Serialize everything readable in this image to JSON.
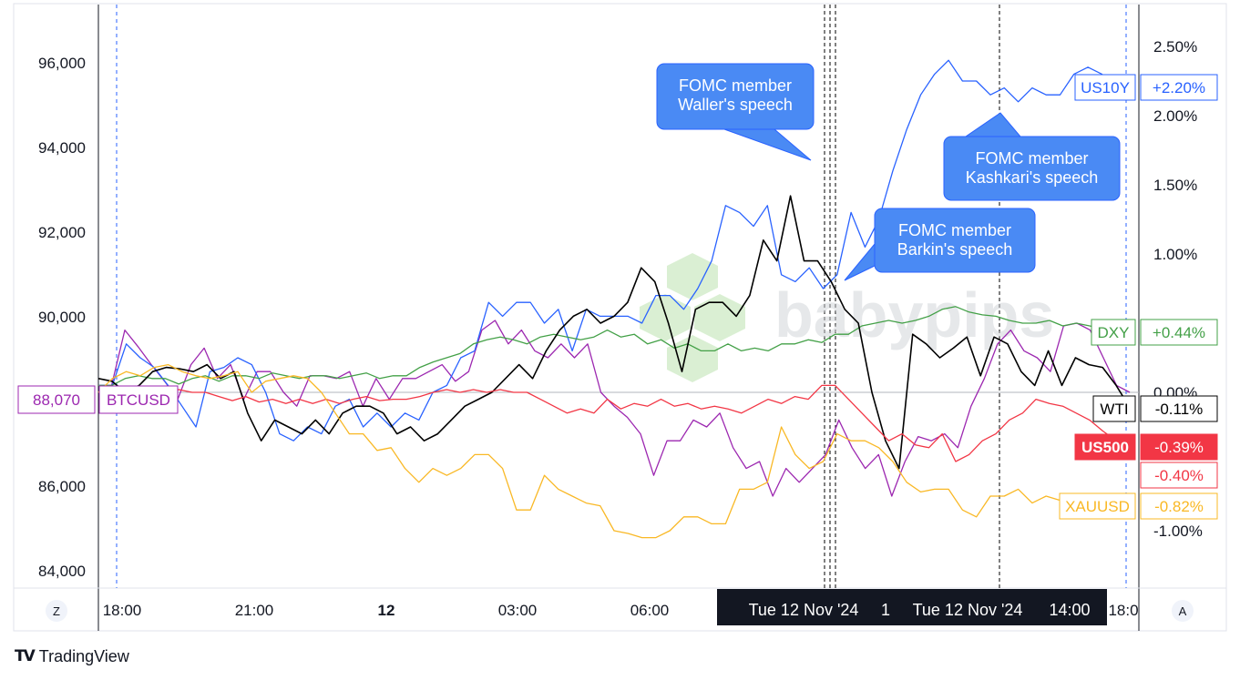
{
  "chart_data": {
    "type": "line",
    "title": "",
    "x_ticks": [
      "18:00",
      "21:00",
      "12",
      "03:00",
      "06:00",
      "18:0"
    ],
    "crosshair_label_left": "Tue 12 Nov '24",
    "crosshair_label_mid": "1",
    "crosshair_label_right": "Tue 12 Nov '24",
    "crosshair_label_time": "14:00",
    "left_axis": {
      "ticks": [
        "96,000",
        "94,000",
        "92,000",
        "90,000",
        "86,000",
        "84,000"
      ],
      "range": [
        83700,
        97200
      ]
    },
    "right_axis": {
      "ticks": [
        "2.50%",
        "2.00%",
        "1.50%",
        "1.00%",
        "0.00%",
        "-1.00%"
      ],
      "range": [
        -1.4,
        2.75
      ]
    },
    "corner_left": "Z",
    "corner_right": "A",
    "btc_price_label": "88,070",
    "annotations": [
      {
        "lines": [
          "FOMC member",
          "Waller's speech"
        ]
      },
      {
        "lines": [
          "FOMC member",
          "Barkin's speech"
        ]
      },
      {
        "lines": [
          "FOMC member",
          "Kashkari's speech"
        ]
      }
    ],
    "series": [
      {
        "name": "BTCUSD",
        "color": "#9c27b0",
        "label_value": "",
        "values": [
          0.05,
          0.05,
          0.45,
          0.33,
          0.2,
          0.08,
          -0.05,
          0.2,
          0.32,
          0.1,
          0.2,
          -0.05,
          0.15,
          0.15,
          0.0,
          -0.1,
          0.12,
          0.12,
          0.1,
          0.15,
          -0.1,
          0.1,
          -0.05,
          0.1,
          0.1,
          0.15,
          0.2,
          0.08,
          0.15,
          0.45,
          0.52,
          0.35,
          0.45,
          0.3,
          0.25,
          0.35,
          0.25,
          0.35,
          0.0,
          -0.1,
          -0.18,
          -0.3,
          -0.6,
          -0.35,
          -0.35,
          -0.2,
          -0.25,
          -0.15,
          -0.4,
          -0.55,
          -0.5,
          -0.75,
          -0.55,
          -0.65,
          -0.55,
          -0.45,
          -0.2,
          -0.4,
          -0.55,
          -0.45,
          -0.75,
          -0.5,
          -0.32,
          -0.35,
          -0.3,
          -0.4,
          -0.1,
          0.1,
          0.35,
          0.45,
          0.3,
          0.25,
          0.15,
          0.48,
          0.5,
          0.45,
          0.25,
          0.05,
          0.0
        ]
      },
      {
        "name": "US10Y",
        "color": "#2962ff",
        "label_value": "+2.20%",
        "values": [
          0.05,
          0.05,
          0.35,
          0.25,
          0.18,
          0.05,
          -0.1,
          -0.25,
          0.15,
          0.18,
          0.25,
          0.2,
          0.0,
          -0.3,
          -0.35,
          -0.25,
          -0.3,
          -0.1,
          -0.05,
          -0.25,
          -0.15,
          -0.25,
          -0.15,
          -0.2,
          0.0,
          0.05,
          0.25,
          0.3,
          0.65,
          0.55,
          0.65,
          0.65,
          0.5,
          0.6,
          0.3,
          0.6,
          0.55,
          0.55,
          0.55,
          0.5,
          0.7,
          0.7,
          0.6,
          0.75,
          0.95,
          1.35,
          1.3,
          1.2,
          1.35,
          0.85,
          0.8,
          0.9,
          0.75,
          0.85,
          1.3,
          1.05,
          1.25,
          1.6,
          1.9,
          2.15,
          2.3,
          2.4,
          2.25,
          2.25,
          2.15,
          2.2,
          2.1,
          2.2,
          2.15,
          2.15,
          2.3,
          2.35,
          2.3,
          2.2,
          2.2
        ]
      },
      {
        "name": "DXY",
        "color": "#43a047",
        "label_value": "+0.44%",
        "values": [
          0.05,
          0.05,
          0.1,
          0.12,
          0.1,
          0.1,
          0.06,
          0.1,
          0.12,
          0.08,
          0.12,
          0.12,
          0.1,
          0.14,
          0.12,
          0.1,
          0.12,
          0.12,
          0.1,
          0.12,
          0.14,
          0.1,
          0.12,
          0.12,
          0.18,
          0.22,
          0.25,
          0.28,
          0.35,
          0.38,
          0.4,
          0.38,
          0.35,
          0.4,
          0.42,
          0.4,
          0.38,
          0.4,
          0.45,
          0.4,
          0.42,
          0.35,
          0.38,
          0.32,
          0.35,
          0.3,
          0.3,
          0.35,
          0.3,
          0.32,
          0.3,
          0.35,
          0.35,
          0.38,
          0.36,
          0.42,
          0.42,
          0.48,
          0.5,
          0.52,
          0.5,
          0.52,
          0.55,
          0.6,
          0.62,
          0.58,
          0.56,
          0.55,
          0.52,
          0.5,
          0.5,
          0.52,
          0.48,
          0.5,
          0.48,
          0.46,
          0.44,
          0.44
        ]
      },
      {
        "name": "WTI",
        "color": "#000000",
        "label_value": "-0.11%",
        "values": [
          0.1,
          0.08,
          0.0,
          0.05,
          0.15,
          0.18,
          0.17,
          0.15,
          0.2,
          0.1,
          0.15,
          -0.15,
          -0.35,
          -0.2,
          -0.25,
          -0.3,
          -0.2,
          -0.3,
          -0.15,
          -0.1,
          -0.1,
          -0.15,
          -0.3,
          -0.25,
          -0.35,
          -0.3,
          -0.2,
          -0.1,
          -0.05,
          0.0,
          0.1,
          0.2,
          0.1,
          0.3,
          0.45,
          0.55,
          0.6,
          0.5,
          0.55,
          0.65,
          0.9,
          0.8,
          0.5,
          0.15,
          0.6,
          0.65,
          0.65,
          0.55,
          0.7,
          1.1,
          0.95,
          1.42,
          0.95,
          0.95,
          0.8,
          0.6,
          0.5,
          0.0,
          -0.35,
          -0.55,
          0.42,
          0.35,
          0.25,
          0.32,
          0.4,
          0.12,
          0.4,
          0.35,
          0.15,
          0.05,
          0.3,
          0.05,
          0.25,
          0.2,
          0.18,
          0.05,
          -0.11
        ]
      },
      {
        "name": "US500",
        "color": "#f23645",
        "label_value": "-0.39%",
        "values": [
          0.0,
          0.02,
          0.0,
          -0.03,
          0.0,
          -0.02,
          0.02,
          0.0,
          0.0,
          -0.03,
          -0.06,
          -0.03,
          -0.07,
          -0.05,
          -0.08,
          -0.05,
          -0.08,
          -0.05,
          -0.08,
          -0.05,
          -0.03,
          -0.06,
          -0.05,
          -0.05,
          -0.03,
          0.0,
          0.02,
          0.0,
          0.02,
          0.0,
          0.02,
          0.0,
          0.0,
          -0.05,
          -0.1,
          -0.15,
          -0.12,
          -0.15,
          -0.05,
          -0.12,
          -0.08,
          -0.1,
          -0.05,
          -0.1,
          -0.08,
          -0.12,
          -0.1,
          -0.12,
          -0.15,
          -0.1,
          -0.05,
          -0.08,
          -0.03,
          -0.05,
          0.05,
          0.05,
          -0.05,
          -0.15,
          -0.25,
          -0.35,
          -0.3,
          -0.38,
          -0.4,
          -0.3,
          -0.5,
          -0.45,
          -0.35,
          -0.3,
          -0.2,
          -0.15,
          -0.05,
          -0.08,
          -0.1,
          -0.15,
          -0.2,
          -0.28,
          -0.35,
          -0.39
        ]
      },
      {
        "name": "XAUUSD",
        "color": "#f9b825",
        "label_value": "-0.82%",
        "values": [
          0.0,
          0.1,
          0.15,
          0.12,
          0.18,
          0.2,
          0.15,
          0.12,
          0.1,
          0.12,
          0.15,
          0.0,
          0.08,
          0.1,
          0.12,
          0.1,
          0.0,
          -0.15,
          -0.3,
          -0.3,
          -0.42,
          -0.4,
          -0.55,
          -0.65,
          -0.55,
          -0.6,
          -0.55,
          -0.45,
          -0.45,
          -0.55,
          -0.85,
          -0.85,
          -0.6,
          -0.7,
          -0.75,
          -0.8,
          -0.82,
          -1.0,
          -1.02,
          -1.05,
          -1.05,
          -1.0,
          -0.9,
          -0.9,
          -0.95,
          -0.95,
          -0.7,
          -0.7,
          -0.65,
          -0.25,
          -0.45,
          -0.55,
          -0.5,
          -0.3,
          -0.35,
          -0.35,
          -0.4,
          -0.5,
          -0.65,
          -0.72,
          -0.7,
          -0.7,
          -0.85,
          -0.9,
          -0.75,
          -0.75,
          -0.7,
          -0.8,
          -0.75,
          -0.78,
          -0.76,
          -0.8,
          -0.85,
          -0.82,
          -0.82
        ]
      }
    ],
    "extra_right_labels": [
      {
        "text": "-0.40%",
        "color": "#f23645"
      }
    ]
  },
  "watermark": "babypips",
  "footer": {
    "brand": "TradingView",
    "logo": "TV"
  }
}
